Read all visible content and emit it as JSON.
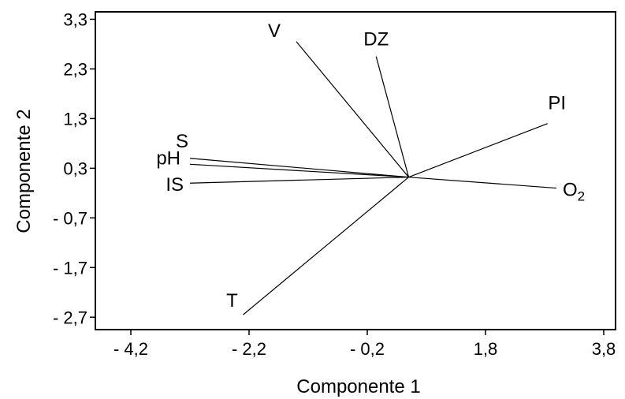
{
  "chart_data": {
    "type": "biplot",
    "title": "",
    "xlabel": "Componente 1",
    "ylabel": "Componente 2",
    "xlim": [
      -4.8,
      4.0
    ],
    "ylim": [
      -2.95,
      3.45
    ],
    "xticks": [
      -4.2,
      -2.2,
      -0.2,
      1.8,
      3.8
    ],
    "yticks": [
      3.3,
      2.3,
      1.3,
      0.3,
      -0.7,
      -1.7,
      -2.7
    ],
    "xtick_labels": [
      "- 4,2",
      "- 2,2",
      "- 0,2",
      "1,8",
      "3,8"
    ],
    "ytick_labels": [
      "3,3",
      "2,3",
      "1,3",
      "0,3",
      "- 0,7",
      "- 1,7",
      "- 2,7"
    ],
    "grid": false,
    "origin": [
      0.5,
      0.12
    ],
    "vectors": [
      {
        "label": "V",
        "x": -1.4,
        "y": 2.85
      },
      {
        "label": "DZ",
        "x": -0.05,
        "y": 2.55
      },
      {
        "label": "PI",
        "x": 2.85,
        "y": 1.2
      },
      {
        "label": "S",
        "x": -3.2,
        "y": 0.5
      },
      {
        "label": "pH",
        "x": -3.2,
        "y": 0.38
      },
      {
        "label": "IS",
        "x": -3.2,
        "y": 0.0
      },
      {
        "label": "O",
        "sub": "2",
        "x": 3.0,
        "y": -0.1
      },
      {
        "label": "T",
        "x": -2.3,
        "y": -2.65
      }
    ]
  }
}
